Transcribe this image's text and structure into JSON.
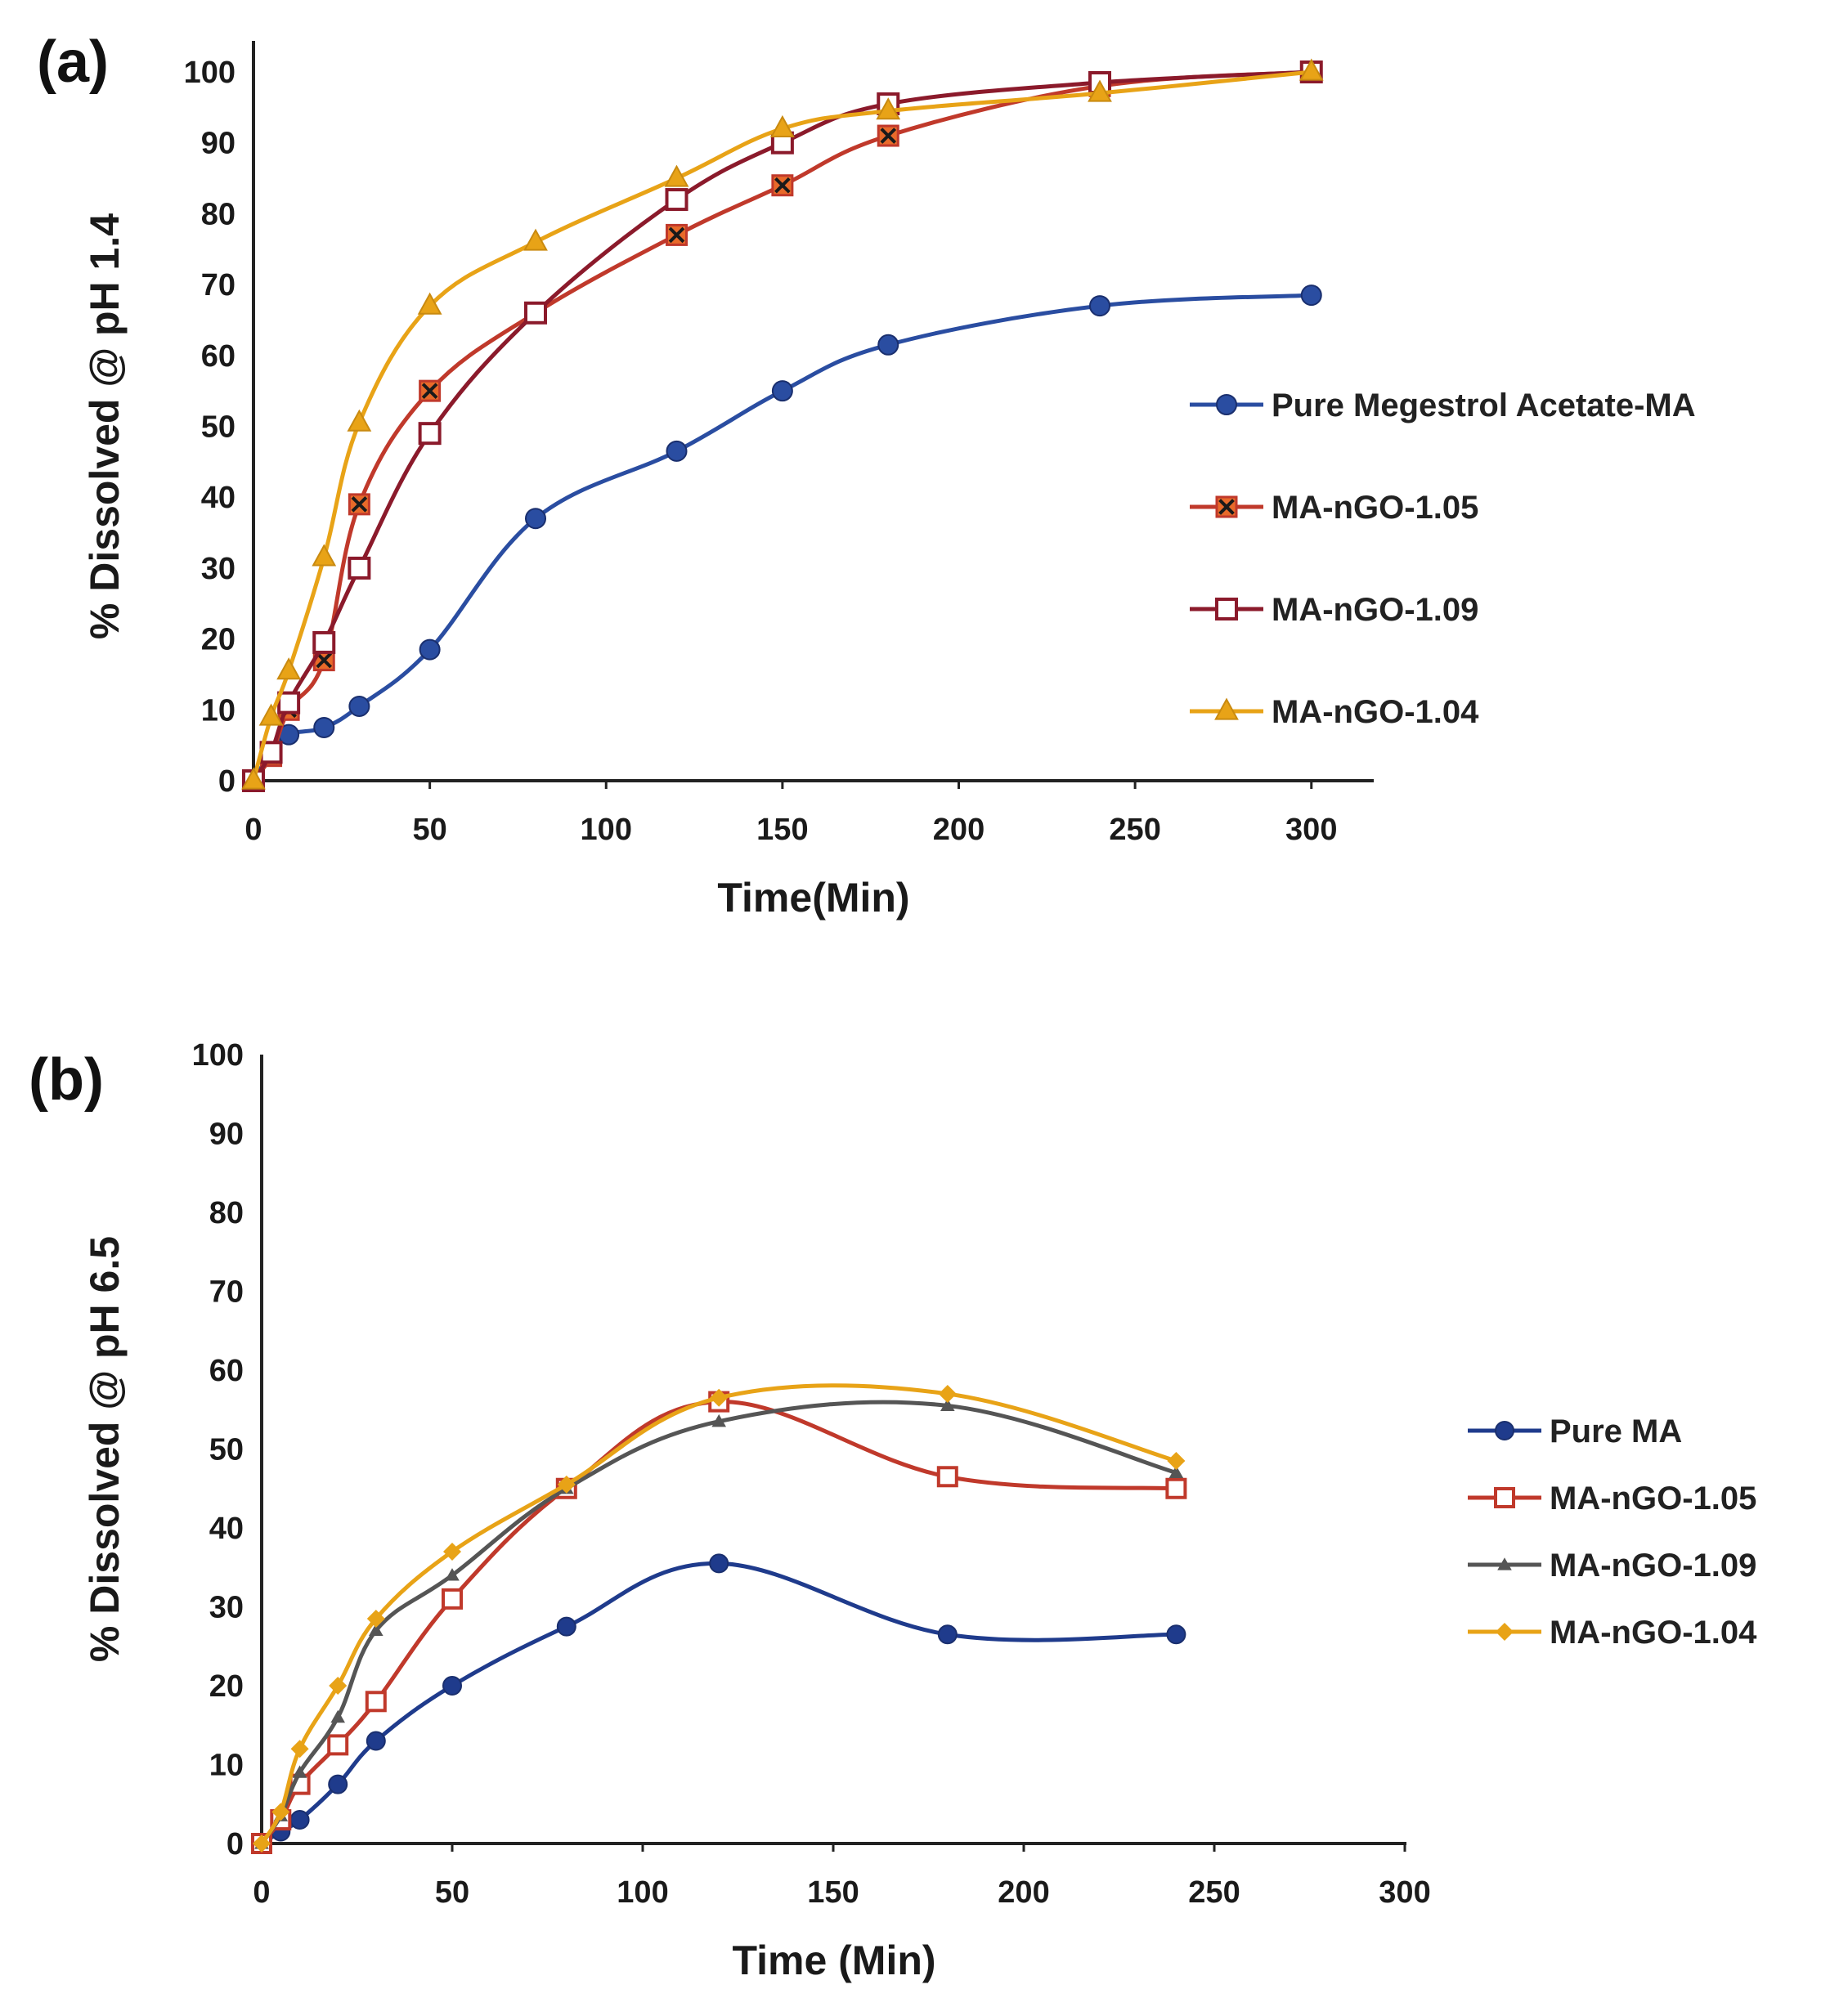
{
  "chart_data": [
    {
      "panel_label": "(a)",
      "type": "line",
      "xlabel": "Time(Min)",
      "ylabel": "% Dissolved @ pH 1.4",
      "xlim": [
        0,
        320
      ],
      "ylim": [
        0,
        100
      ],
      "xticks": [
        0,
        50,
        100,
        150,
        200,
        250,
        300
      ],
      "yticks": [
        0,
        10,
        20,
        30,
        40,
        50,
        60,
        70,
        80,
        90,
        100
      ],
      "legend_position": "right",
      "series": [
        {
          "name": "Pure Megestrol Acetate-MA",
          "color": "#2a4da1",
          "marker": "circle",
          "x": [
            0,
            5,
            10,
            20,
            30,
            50,
            80,
            120,
            150,
            180,
            240,
            300
          ],
          "y": [
            0,
            4,
            6.5,
            7.5,
            10.5,
            18.5,
            37,
            46.5,
            55,
            61.5,
            67,
            68.5
          ]
        },
        {
          "name": "MA-nGO-1.05",
          "color": "#c0392b",
          "marker": "x-square",
          "x": [
            0,
            5,
            10,
            20,
            30,
            50,
            80,
            120,
            150,
            180,
            240,
            300
          ],
          "y": [
            0,
            3.5,
            10,
            17,
            39,
            55,
            66,
            77,
            84,
            91,
            98,
            100
          ]
        },
        {
          "name": "MA-nGO-1.09",
          "color": "#8b1a2b",
          "marker": "square-open",
          "x": [
            0,
            5,
            10,
            20,
            30,
            50,
            80,
            120,
            150,
            180,
            240,
            300
          ],
          "y": [
            0,
            4,
            11,
            19.5,
            30,
            49,
            66,
            82,
            90,
            95.5,
            98.5,
            100
          ]
        },
        {
          "name": "MA-nGO-1.04",
          "color": "#e8a317",
          "marker": "triangle",
          "x": [
            0,
            5,
            10,
            20,
            30,
            50,
            80,
            120,
            150,
            180,
            240,
            300
          ],
          "y": [
            0,
            9,
            15.5,
            31.5,
            50.5,
            67,
            76,
            85,
            92,
            94.5,
            97,
            100
          ]
        }
      ]
    },
    {
      "panel_label": "(b)",
      "type": "line",
      "xlabel": "Time (Min)",
      "ylabel": "% Dissolved @ pH 6.5",
      "xlim": [
        0,
        300
      ],
      "ylim": [
        0,
        100
      ],
      "xticks": [
        0,
        50,
        100,
        150,
        200,
        250,
        300
      ],
      "yticks": [
        0,
        10,
        20,
        30,
        40,
        50,
        60,
        70,
        80,
        90,
        100
      ],
      "legend_position": "right",
      "series": [
        {
          "name": "Pure MA",
          "color": "#1f3b8c",
          "marker": "circle",
          "x": [
            0,
            5,
            10,
            20,
            30,
            50,
            80,
            120,
            180,
            240
          ],
          "y": [
            0,
            1.5,
            3,
            7.5,
            13,
            20,
            27.5,
            35.5,
            26.5,
            26.5
          ]
        },
        {
          "name": "MA-nGO-1.05",
          "color": "#c0392b",
          "marker": "square-open",
          "x": [
            0,
            5,
            10,
            20,
            30,
            50,
            80,
            120,
            180,
            240
          ],
          "y": [
            0,
            3,
            7.5,
            12.5,
            18,
            31,
            45,
            56,
            46.5,
            45
          ]
        },
        {
          "name": "MA-nGO-1.09",
          "color": "#555555",
          "marker": "triangle-small",
          "x": [
            0,
            5,
            10,
            20,
            30,
            50,
            80,
            120,
            180,
            240
          ],
          "y": [
            0,
            3.5,
            9,
            16,
            27,
            34,
            45,
            53.5,
            55.5,
            47
          ]
        },
        {
          "name": "MA-nGO-1.04",
          "color": "#e8a317",
          "marker": "diamond",
          "x": [
            0,
            5,
            10,
            20,
            30,
            50,
            80,
            120,
            180,
            240
          ],
          "y": [
            0,
            4,
            12,
            20,
            28.5,
            37,
            45.5,
            56.5,
            57,
            48.5
          ]
        }
      ]
    }
  ]
}
